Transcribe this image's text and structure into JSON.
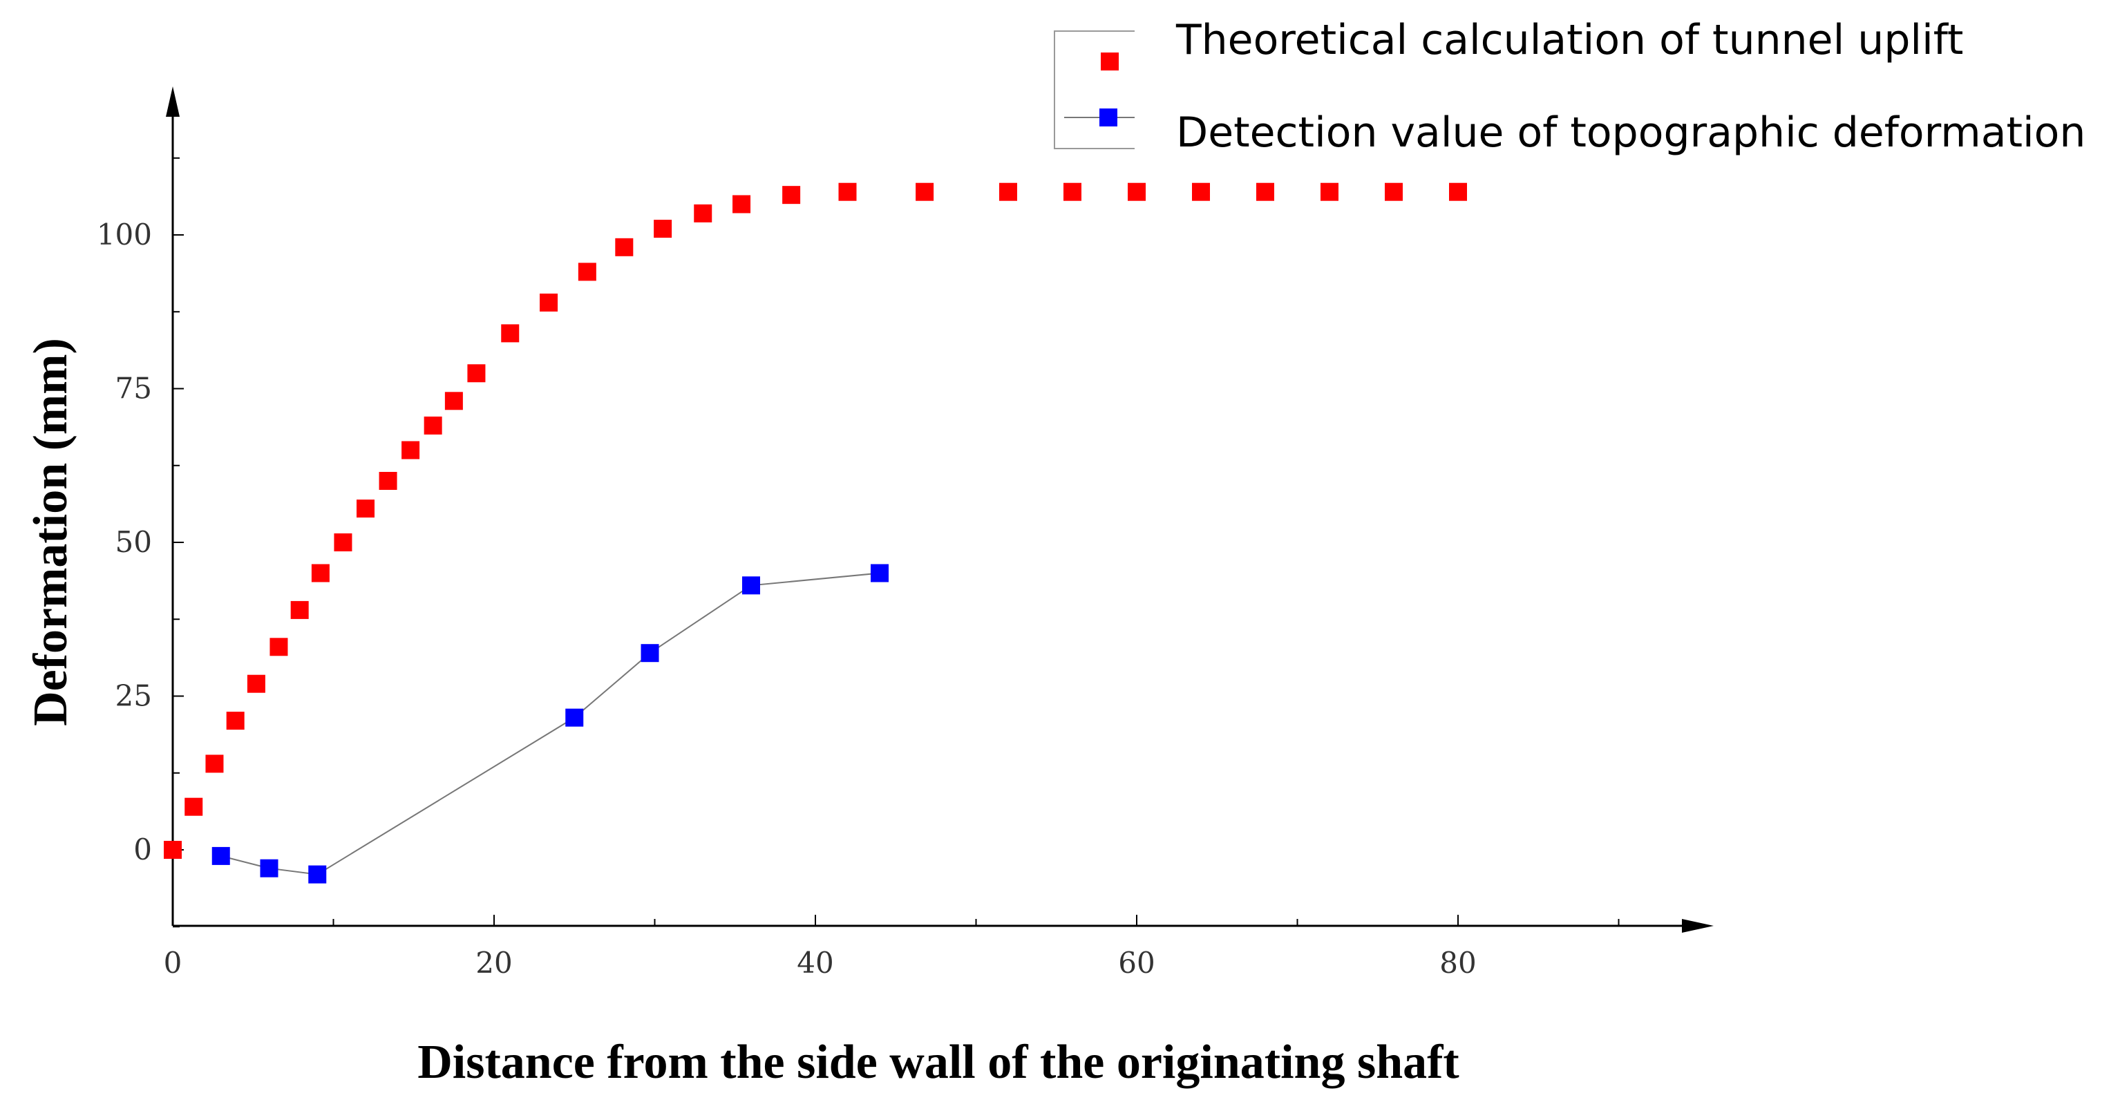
{
  "chart_data": {
    "type": "scatter",
    "title": "",
    "xlabel": "Distance from the side wall of the originating shaft",
    "ylabel": "Deformation (mm)",
    "xlim": [
      0,
      96
    ],
    "ylim": [
      -12,
      118
    ],
    "xticks": [
      0,
      20,
      40,
      60,
      80
    ],
    "yticks": [
      0,
      25,
      50,
      75,
      100
    ],
    "legend_position": "top-right",
    "grid": false,
    "series": [
      {
        "name": "Theoretical calculation of tunnel uplift",
        "style": "markers",
        "color": "#ff0000",
        "x": [
          0,
          1.3,
          2.6,
          3.9,
          5.2,
          6.6,
          7.9,
          9.2,
          10.6,
          12,
          13.4,
          14.8,
          16.2,
          17.5,
          18.9,
          21,
          23.4,
          25.8,
          28.1,
          30.5,
          33,
          35.4,
          38.5,
          42,
          46.8,
          52,
          56,
          60,
          64,
          68,
          72,
          76,
          80
        ],
        "y": [
          0,
          7,
          14,
          21,
          27,
          33,
          39,
          45,
          50,
          55.5,
          60,
          65,
          69,
          73,
          77.5,
          84,
          89,
          94,
          98,
          101,
          103.5,
          105,
          106.5,
          107,
          107,
          107,
          107,
          107,
          107,
          107,
          107,
          107,
          107
        ]
      },
      {
        "name": "Detection value of topographic deformation",
        "style": "line+markers",
        "color": "#0000ff",
        "line_color": "#777777",
        "x": [
          3,
          6,
          9,
          25,
          29.7,
          36,
          44
        ],
        "y": [
          -1,
          -3,
          -4,
          21.5,
          32,
          43,
          45
        ]
      }
    ]
  }
}
